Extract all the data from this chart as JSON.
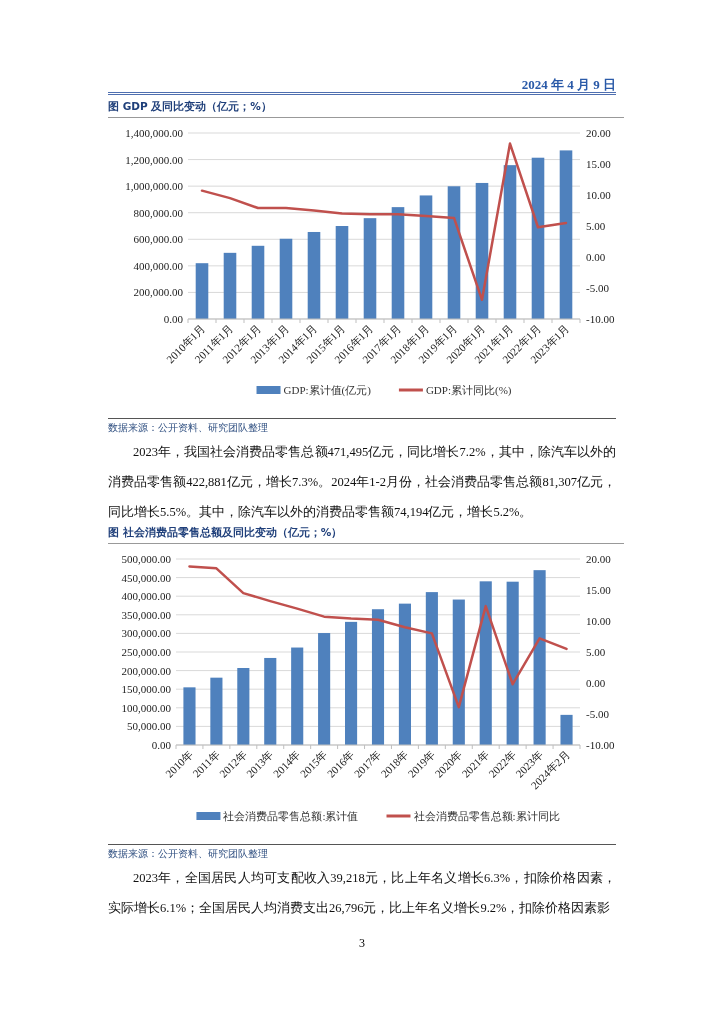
{
  "chart_data": [
    {
      "type": "bar",
      "title": "图  GDP 及同比变动（亿元；%）",
      "categories": [
        "2010年1月",
        "2011年1月",
        "2012年1月",
        "2013年1月",
        "2014年1月",
        "2015年1月",
        "2016年1月",
        "2017年1月",
        "2018年1月",
        "2019年1月",
        "2020年1月",
        "2021年1月",
        "2022年1月",
        "2023年1月"
      ],
      "series": [
        {
          "name": "GDP:累计值(亿元)",
          "color": "#4f81bd",
          "values": [
            420000,
            498000,
            551000,
            604000,
            655000,
            700000,
            759000,
            842000,
            930000,
            999000,
            1024000,
            1158000,
            1214000,
            1269000
          ]
        },
        {
          "name": "GDP:累计同比(%)",
          "type": "line",
          "axis": "y2",
          "color": "#c0504d",
          "values": [
            10.7,
            9.5,
            7.9,
            7.9,
            7.5,
            7.0,
            6.9,
            6.9,
            6.6,
            6.3,
            -6.9,
            18.3,
            4.8,
            5.5
          ]
        }
      ],
      "ylim": [
        0,
        1400000
      ],
      "yticks": [
        {
          "value": 0,
          "label": "0.00"
        },
        {
          "value": 200000,
          "label": "200,000.00"
        },
        {
          "value": 400000,
          "label": "400,000.00"
        },
        {
          "value": 600000,
          "label": "600,000.00"
        },
        {
          "value": 800000,
          "label": "800,000.00"
        },
        {
          "value": 1000000,
          "label": "1,000,000.00"
        },
        {
          "value": 1200000,
          "label": "1,200,000.00"
        },
        {
          "value": 1400000,
          "label": "1,400,000.00"
        }
      ],
      "y2lim": [
        -10,
        20
      ],
      "y2ticks": [
        {
          "value": -10,
          "label": "-10.00"
        },
        {
          "value": -5,
          "label": "-5.00"
        },
        {
          "value": 0,
          "label": "0.00"
        },
        {
          "value": 5,
          "label": "5.00"
        },
        {
          "value": 10,
          "label": "10.00"
        },
        {
          "value": 15,
          "label": "15.00"
        },
        {
          "value": 20,
          "label": "20.00"
        }
      ],
      "grid": "y",
      "legend": "bottom",
      "annotations": [
        "2024 年 4 月 9 日",
        "数据来源：公开资料、研究团队整理",
        "2023年，我国社会消费品零售总额471,495亿元，同比增长7.2%，其中，除汽车以外的消费品零售额422,881亿元，增长7.3%。2024年1-2月份，社会消费品零售总额81,307亿元，同比增长5.5%。其中，除汽车以外的消费品零售额74,194亿元，增长5.2%。"
      ]
    },
    {
      "type": "bar",
      "title": "图  社会消费品零售总额及同比变动（亿元；%）",
      "categories": [
        "2010年",
        "2011年",
        "2012年",
        "2013年",
        "2014年",
        "2015年",
        "2016年",
        "2017年",
        "2018年",
        "2019年",
        "2020年",
        "2021年",
        "2022年",
        "2023年",
        "2024年2月"
      ],
      "series": [
        {
          "name": "社会消费品零售总额:累计值",
          "color": "#4f81bd",
          "values": [
            155000,
            181000,
            207000,
            234000,
            262000,
            301000,
            331000,
            365000,
            380000,
            411000,
            391000,
            440000,
            439000,
            470000,
            81000
          ]
        },
        {
          "name": "社会消费品零售总额:累计同比",
          "type": "line",
          "axis": "y2",
          "color": "#c0504d",
          "values": [
            18.8,
            18.5,
            14.5,
            13.2,
            12.0,
            10.7,
            10.4,
            10.2,
            9.0,
            8.0,
            -3.9,
            12.4,
            -0.2,
            7.2,
            5.5
          ]
        }
      ],
      "ylim": [
        0,
        500000
      ],
      "yticks": [
        {
          "value": 0,
          "label": "0.00"
        },
        {
          "value": 50000,
          "label": "50,000.00"
        },
        {
          "value": 100000,
          "label": "100,000.00"
        },
        {
          "value": 150000,
          "label": "150,000.00"
        },
        {
          "value": 200000,
          "label": "200,000.00"
        },
        {
          "value": 250000,
          "label": "250,000.00"
        },
        {
          "value": 300000,
          "label": "300,000.00"
        },
        {
          "value": 350000,
          "label": "350,000.00"
        },
        {
          "value": 400000,
          "label": "400,000.00"
        },
        {
          "value": 450000,
          "label": "450,000.00"
        },
        {
          "value": 500000,
          "label": "500,000.00"
        }
      ],
      "y2lim": [
        -10,
        20
      ],
      "y2ticks": [
        {
          "value": -10,
          "label": "-10.00"
        },
        {
          "value": -5,
          "label": "-5.00"
        },
        {
          "value": 0,
          "label": "0.00"
        },
        {
          "value": 5,
          "label": "5.00"
        },
        {
          "value": 10,
          "label": "10.00"
        },
        {
          "value": 15,
          "label": "15.00"
        },
        {
          "value": 20,
          "label": "20.00"
        }
      ],
      "grid": "y",
      "legend": "bottom",
      "annotations": [
        "数据来源：公开资料、研究团队整理",
        "2023年，全国居民人均可支配收入39,218元，比上年名义增长6.3%，扣除价格因素，实际增长6.1%；全国居民人均消费支出26,796元，比上年名义增长9.2%，扣除价格因素影",
        "3"
      ]
    }
  ]
}
